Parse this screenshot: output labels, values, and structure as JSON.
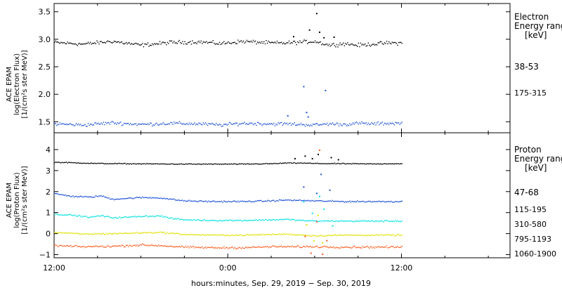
{
  "chart_data": [
    {
      "type": "scatter",
      "panel": "electron",
      "ylabel_lines": [
        "ACE EPAM",
        "log(Electron Flux)",
        "[1/(cm²s ster MeV)]"
      ],
      "legend_title": [
        "Electron",
        "Energy range",
        "[keV]"
      ],
      "ylim": [
        1.3,
        3.65
      ],
      "yticks": [
        1.5,
        2.0,
        2.5,
        3.0,
        3.5
      ],
      "ytick_labels": [
        "1.5",
        "2.0",
        "2.5",
        "3.0",
        "3.5"
      ],
      "series": [
        {
          "name": "38-53",
          "color": "#000000",
          "baseline": 2.95,
          "noise": 0.05,
          "samples": [
            [
              0,
              2.95
            ],
            [
              2,
              2.92
            ],
            [
              4,
              2.97
            ],
            [
              6,
              2.9
            ],
            [
              8,
              2.95
            ],
            [
              10,
              2.96
            ],
            [
              11.5,
              2.93
            ],
            [
              13,
              2.97
            ],
            [
              15,
              2.94
            ],
            [
              16,
              2.94
            ],
            [
              18,
              2.97
            ],
            [
              19,
              2.9
            ],
            [
              20,
              2.93
            ],
            [
              21,
              2.9
            ],
            [
              22,
              2.92
            ],
            [
              23,
              2.94
            ]
          ],
          "spikes": [
            [
              16.5,
              3.06
            ],
            [
              17.6,
              3.18
            ],
            [
              18.1,
              3.48
            ],
            [
              18.3,
              3.14
            ],
            [
              18.6,
              3.04
            ],
            [
              19.3,
              3.05
            ]
          ]
        },
        {
          "name": "175-315",
          "color": "#1a4fd6",
          "baseline": 1.47,
          "noise": 0.045,
          "samples": [
            [
              0,
              1.47
            ],
            [
              2,
              1.45
            ],
            [
              4,
              1.49
            ],
            [
              6,
              1.46
            ],
            [
              8,
              1.48
            ],
            [
              10,
              1.47
            ],
            [
              11.5,
              1.45
            ],
            [
              13,
              1.48
            ],
            [
              15,
              1.47
            ],
            [
              16,
              1.47
            ],
            [
              18,
              1.45
            ],
            [
              19,
              1.47
            ],
            [
              20,
              1.46
            ],
            [
              21,
              1.48
            ],
            [
              22,
              1.47
            ],
            [
              23,
              1.48
            ]
          ],
          "spikes": [
            [
              16.1,
              1.62
            ],
            [
              17.2,
              2.15
            ],
            [
              17.4,
              1.68
            ],
            [
              17.5,
              1.6
            ],
            [
              18.7,
              2.08
            ]
          ]
        }
      ]
    },
    {
      "type": "scatter",
      "panel": "proton",
      "ylabel_lines": [
        "ACE EPAM",
        "log(Proton Flux)",
        "[1/(cm²s ster MeV)]"
      ],
      "legend_title": [
        "Proton",
        "Energy range",
        "[keV]"
      ],
      "ylim": [
        -1.15,
        4.8
      ],
      "yticks": [
        -1,
        0,
        1,
        2,
        3,
        4
      ],
      "ytick_labels": [
        "−1",
        "0",
        "1",
        "2",
        "3",
        "4"
      ],
      "series": [
        {
          "name": "47-68",
          "color": "#000000",
          "baseline": 3.35,
          "noise": 0.03,
          "samples": [
            [
              0,
              3.42
            ],
            [
              1,
              3.4
            ],
            [
              3,
              3.36
            ],
            [
              5,
              3.35
            ],
            [
              7,
              3.34
            ],
            [
              9,
              3.33
            ],
            [
              11,
              3.33
            ],
            [
              13,
              3.33
            ],
            [
              15,
              3.35
            ],
            [
              16,
              3.38
            ],
            [
              17,
              3.38
            ],
            [
              18,
              3.36
            ],
            [
              20,
              3.35
            ],
            [
              22,
              3.34
            ],
            [
              23,
              3.35
            ]
          ],
          "spikes": [
            [
              16.6,
              3.6
            ],
            [
              17.3,
              3.72
            ],
            [
              17.8,
              3.6
            ],
            [
              18.2,
              3.8
            ],
            [
              19.1,
              3.65
            ],
            [
              19.6,
              3.55
            ]
          ]
        },
        {
          "name": "115-195",
          "color": "#1a4fd6",
          "baseline": 1.6,
          "noise": 0.05,
          "samples": [
            [
              0,
              1.92
            ],
            [
              1.2,
              1.8
            ],
            [
              2.5,
              1.76
            ],
            [
              3.2,
              1.82
            ],
            [
              4,
              1.66
            ],
            [
              5,
              1.7
            ],
            [
              6,
              1.74
            ],
            [
              7.4,
              1.72
            ],
            [
              8,
              1.66
            ],
            [
              9,
              1.58
            ],
            [
              11,
              1.55
            ],
            [
              13,
              1.55
            ],
            [
              15,
              1.58
            ],
            [
              16,
              1.62
            ],
            [
              17,
              1.6
            ],
            [
              18,
              1.58
            ],
            [
              20,
              1.55
            ],
            [
              22,
              1.55
            ],
            [
              23,
              1.55
            ]
          ],
          "spikes": [
            [
              17.2,
              2.25
            ],
            [
              18.4,
              2.85
            ],
            [
              18.1,
              1.95
            ],
            [
              19.0,
              2.1
            ]
          ]
        },
        {
          "name": "310-580",
          "color": "#00e0e0",
          "baseline": 0.65,
          "noise": 0.05,
          "samples": [
            [
              0,
              0.95
            ],
            [
              1.2,
              0.9
            ],
            [
              2.5,
              0.8
            ],
            [
              3.2,
              0.88
            ],
            [
              4,
              0.78
            ],
            [
              5,
              0.8
            ],
            [
              6,
              0.85
            ],
            [
              7.4,
              0.86
            ],
            [
              8,
              0.75
            ],
            [
              9,
              0.68
            ],
            [
              11,
              0.65
            ],
            [
              13,
              0.65
            ],
            [
              15,
              0.68
            ],
            [
              16,
              0.7
            ],
            [
              17,
              0.65
            ],
            [
              18,
              0.62
            ],
            [
              20,
              0.62
            ],
            [
              22,
              0.62
            ],
            [
              23,
              0.62
            ]
          ],
          "spikes": [
            [
              17.2,
              1.55
            ],
            [
              17.8,
              1.0
            ],
            [
              18.3,
              1.8
            ],
            [
              18.6,
              1.2
            ],
            [
              19.2,
              0.4
            ]
          ]
        },
        {
          "name": "795-1193",
          "color": "#e0e000",
          "baseline": -0.05,
          "noise": 0.05,
          "samples": [
            [
              0,
              0.08
            ],
            [
              2,
              0.0
            ],
            [
              4,
              0.02
            ],
            [
              6,
              0.06
            ],
            [
              7.4,
              0.08
            ],
            [
              9,
              -0.02
            ],
            [
              11,
              -0.05
            ],
            [
              13,
              -0.05
            ],
            [
              15,
              -0.02
            ],
            [
              16,
              0.0
            ],
            [
              18,
              -0.08
            ],
            [
              20,
              -0.05
            ],
            [
              22,
              -0.05
            ],
            [
              23,
              -0.05
            ]
          ],
          "spikes": [
            [
              17.4,
              0.45
            ],
            [
              17.9,
              -0.3
            ],
            [
              18.2,
              0.9
            ],
            [
              18.5,
              -0.4
            ]
          ]
        },
        {
          "name": "1060-1900",
          "color": "#ff5a1a",
          "baseline": -0.6,
          "noise": 0.07,
          "samples": [
            [
              0,
              -0.55
            ],
            [
              2,
              -0.6
            ],
            [
              4,
              -0.58
            ],
            [
              6,
              -0.52
            ],
            [
              7.4,
              -0.55
            ],
            [
              9,
              -0.62
            ],
            [
              11,
              -0.65
            ],
            [
              13,
              -0.65
            ],
            [
              15,
              -0.6
            ],
            [
              16,
              -0.6
            ],
            [
              18,
              -0.6
            ],
            [
              20,
              -0.62
            ],
            [
              22,
              -0.62
            ],
            [
              23,
              -0.62
            ]
          ],
          "spikes": [
            [
              17.3,
              -0.1
            ],
            [
              17.7,
              -0.9
            ],
            [
              18.1,
              0.6
            ],
            [
              18.3,
              4.0
            ],
            [
              18.5,
              -0.95
            ],
            [
              18.8,
              -0.3
            ]
          ]
        }
      ]
    }
  ],
  "x_axis": {
    "range_hours": [
      0,
      31.5
    ],
    "data_end_hours": 24,
    "ticks_hours": [
      0,
      12,
      24
    ],
    "tick_labels": [
      "12:00",
      "0:00",
      "12:00"
    ],
    "xlabel": "hours:minutes, Sep. 29, 2019 − Sep. 30, 2019"
  }
}
